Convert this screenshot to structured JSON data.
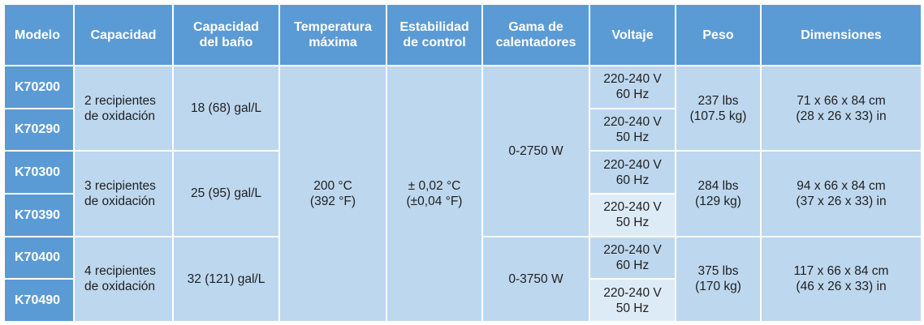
{
  "headers": {
    "model": "Modelo",
    "capacity": "Capacidad",
    "bath_capacity": [
      "Capacidad",
      "del baño"
    ],
    "max_temp": [
      "Temperatura",
      "máxima"
    ],
    "stability": [
      "Estabilidad",
      "de control"
    ],
    "heater_range": [
      "Gama de",
      "calentadores"
    ],
    "voltage": "Voltaje",
    "weight": "Peso",
    "dimensions": "Dimensiones"
  },
  "groups": [
    {
      "models": [
        "K70200",
        "K70290"
      ],
      "capacity": [
        "2 recipientes",
        "de oxidación"
      ],
      "bath": "18 (68) gal/L",
      "voltages": [
        [
          "220-240 V",
          "60 Hz"
        ],
        [
          "220-240 V",
          "50 Hz"
        ]
      ],
      "weight": [
        "237 lbs",
        "(107.5 kg)"
      ],
      "dimensions": [
        "71 x 66 x 84 cm",
        "(28 x 26 x 33) in"
      ]
    },
    {
      "models": [
        "K70300",
        "K70390"
      ],
      "capacity": [
        "3 recipientes",
        "de oxidación"
      ],
      "bath": "25 (95) gal/L",
      "voltages": [
        [
          "220-240 V",
          "60 Hz"
        ],
        [
          "220-240 V",
          "50 Hz"
        ]
      ],
      "weight": [
        "284 lbs",
        "(129 kg)"
      ],
      "dimensions": [
        "94 x 66 x 84 cm",
        "(37 x 26 x 33) in"
      ]
    },
    {
      "models": [
        "K70400",
        "K70490"
      ],
      "capacity": [
        "4 recipientes",
        "de oxidación"
      ],
      "bath": "32 (121) gal/L",
      "voltages": [
        [
          "220-240 V",
          "60 Hz"
        ],
        [
          "220-240 V",
          "50 Hz"
        ]
      ],
      "weight": [
        "375 lbs",
        "(170 kg)"
      ],
      "dimensions": [
        "117 x 66 x 84 cm",
        "(46 x 26 x 33) in"
      ]
    }
  ],
  "shared": {
    "max_temp": [
      "200 °C",
      "(392 °F)"
    ],
    "stability": [
      "± 0,02 °C",
      "(±0,04 °F)"
    ],
    "heater_range_1": "0-2750 W",
    "heater_range_2": "0-3750 W"
  }
}
